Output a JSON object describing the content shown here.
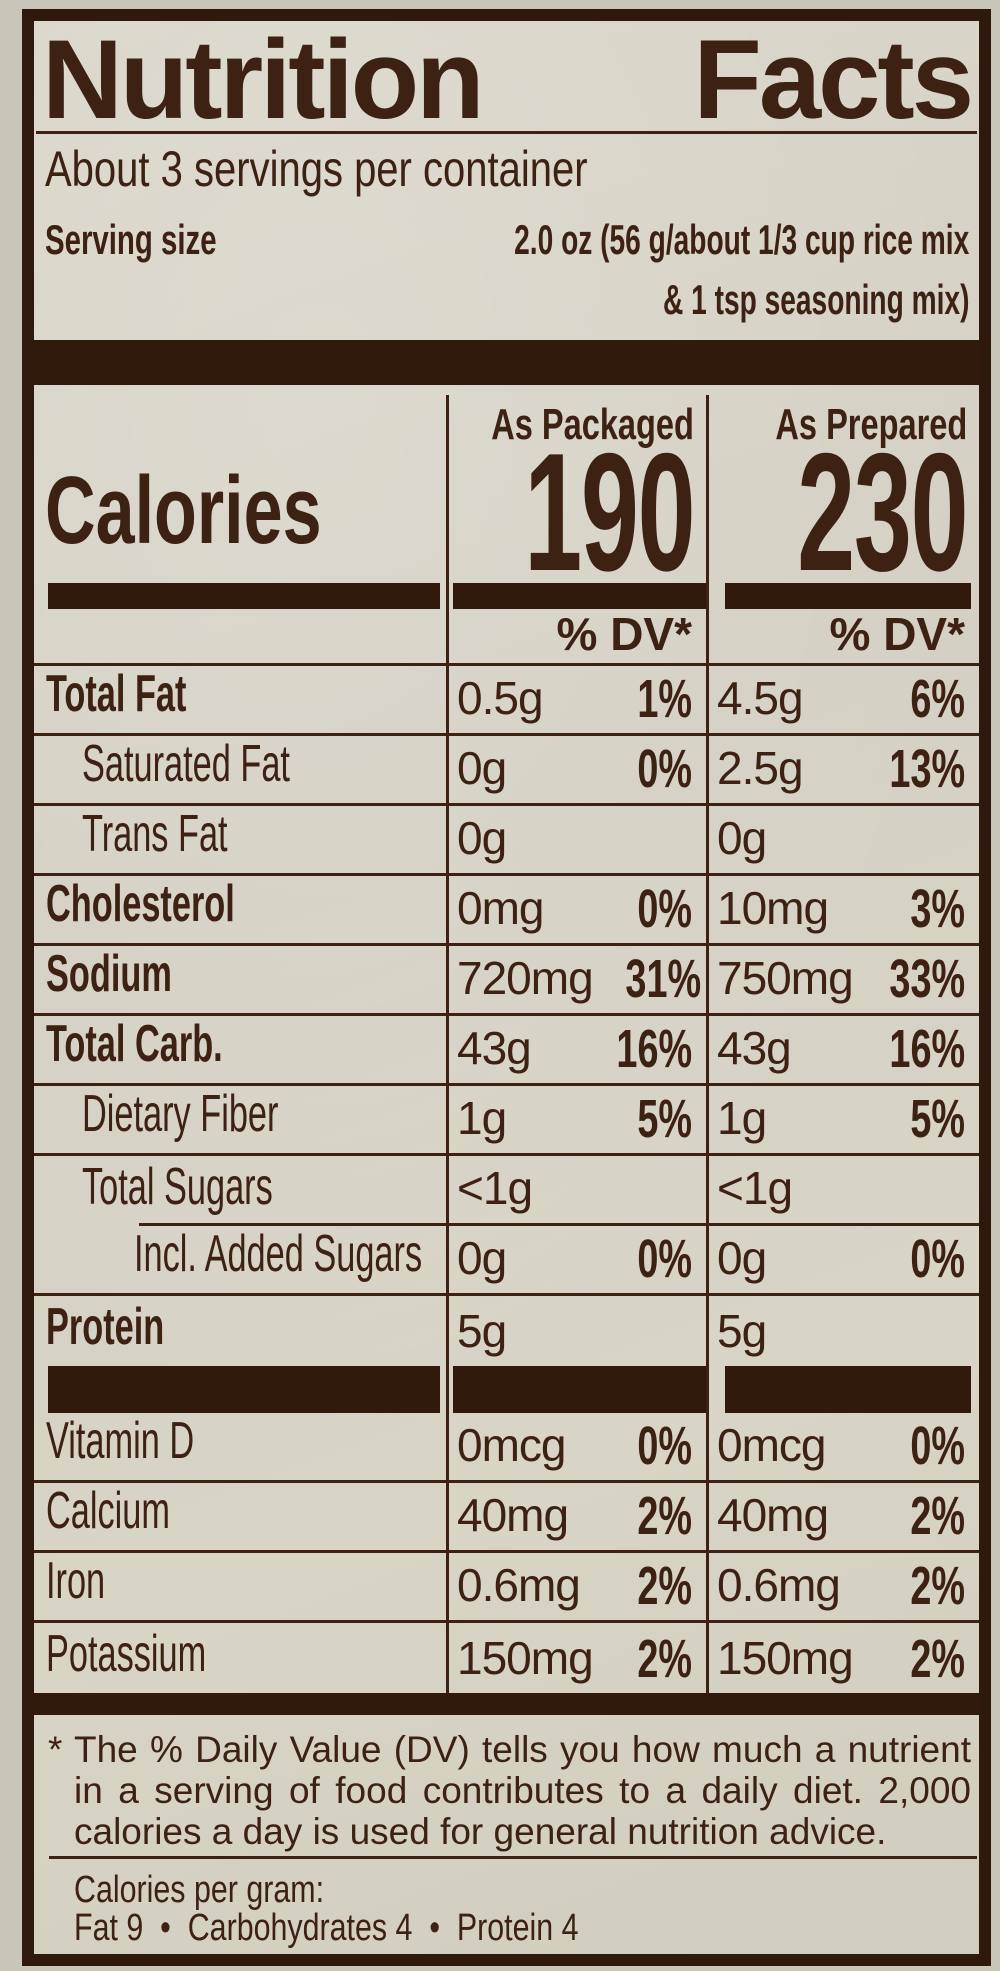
{
  "colors": {
    "ink": "#3d2213",
    "bar": "#31190b",
    "background": "#d6d2c5",
    "border": "#2e190c"
  },
  "header": {
    "title_word1": "Nutrition",
    "title_word2": "Facts",
    "servings_per_container": "About 3 servings per container",
    "serving_size_label": "Serving size",
    "serving_size_line1": "2.0 oz (56 g/about 1/3 cup rice mix",
    "serving_size_line2": "& 1 tsp seasoning mix)"
  },
  "calories": {
    "label": "Calories",
    "as_packaged_header": "As Packaged",
    "as_prepared_header": "As Prepared",
    "as_packaged_value": "190",
    "as_prepared_value": "230",
    "dv_header": "% DV*"
  },
  "nutrients": [
    {
      "type": "row",
      "label": "Total Fat",
      "style": "b",
      "packaged_amount": "0.5g",
      "packaged_dv": "1%",
      "prepared_amount": "4.5g",
      "prepared_dv": "6%"
    },
    {
      "type": "row",
      "label": "Saturated Fat",
      "style": "i1",
      "packaged_amount": "0g",
      "packaged_dv": "0%",
      "prepared_amount": "2.5g",
      "prepared_dv": "13%"
    },
    {
      "type": "row",
      "label": "Trans Fat",
      "style": "i1",
      "packaged_amount": "0g",
      "packaged_dv": "",
      "prepared_amount": "0g",
      "prepared_dv": ""
    },
    {
      "type": "row",
      "label": "Cholesterol",
      "style": "b",
      "packaged_amount": "0mg",
      "packaged_dv": "0%",
      "prepared_amount": "10mg",
      "prepared_dv": "3%"
    },
    {
      "type": "row",
      "label": "Sodium",
      "style": "b",
      "packaged_amount": "720mg",
      "packaged_dv": "31%",
      "prepared_amount": "750mg",
      "prepared_dv": "33%"
    },
    {
      "type": "row",
      "label": "Total Carb.",
      "style": "b",
      "packaged_amount": "43g",
      "packaged_dv": "16%",
      "prepared_amount": "43g",
      "prepared_dv": "16%"
    },
    {
      "type": "row",
      "label": "Dietary Fiber",
      "style": "i1",
      "packaged_amount": "1g",
      "packaged_dv": "5%",
      "prepared_amount": "1g",
      "prepared_dv": "5%"
    },
    {
      "type": "row",
      "label": "Total Sugars",
      "style": "i1",
      "ruleIndent": true,
      "packaged_amount": "<1g",
      "packaged_dv": "",
      "prepared_amount": "<1g",
      "prepared_dv": ""
    },
    {
      "type": "row",
      "label": "Incl. Added Sugars",
      "style": "i2",
      "packaged_amount": "0g",
      "packaged_dv": "0%",
      "prepared_amount": "0g",
      "prepared_dv": "0%"
    },
    {
      "type": "row",
      "label": "Protein",
      "style": "b",
      "noRule": true,
      "packaged_amount": "5g",
      "packaged_dv": "",
      "prepared_amount": "5g",
      "prepared_dv": ""
    },
    {
      "type": "bars"
    },
    {
      "type": "row",
      "label": "Vitamin D",
      "style": "p",
      "packaged_amount": "0mcg",
      "packaged_dv": "0%",
      "prepared_amount": "0mcg",
      "prepared_dv": "0%"
    },
    {
      "type": "row",
      "label": "Calcium",
      "style": "p",
      "packaged_amount": "40mg",
      "packaged_dv": "2%",
      "prepared_amount": "40mg",
      "prepared_dv": "2%"
    },
    {
      "type": "row",
      "label": "Iron",
      "style": "p",
      "packaged_amount": "0.6mg",
      "packaged_dv": "2%",
      "prepared_amount": "0.6mg",
      "prepared_dv": "2%"
    },
    {
      "type": "row",
      "label": "Potassium",
      "style": "p",
      "noRule": true,
      "packaged_amount": "150mg",
      "packaged_dv": "2%",
      "prepared_amount": "150mg",
      "prepared_dv": "2%"
    }
  ],
  "footnote": {
    "marker": "*",
    "line1": "The % Daily Value (DV) tells you how much a nutrient",
    "line2": "in a serving of food contributes to a daily diet. 2,000",
    "line3": "calories a day is used for general nutrition advice.",
    "calories_per_gram_label": "Calories per gram:",
    "calories_per_gram_values": "Fat 9  •  Carbohydrates 4  •  Protein 4"
  }
}
